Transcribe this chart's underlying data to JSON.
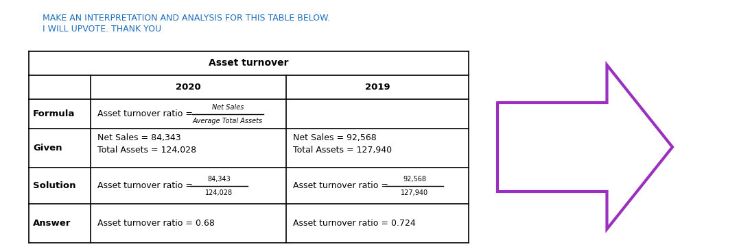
{
  "title_line1": "MAKE AN INTERPRETATION AND ANALYSIS FOR THIS TABLE BELOW.",
  "title_line2": "I WILL UPVOTE. THANK YOU",
  "title_color": "#1F6EBF",
  "table_title": "Asset turnover",
  "col_2020": "2020",
  "col_2019": "2019",
  "row_labels": [
    "Formula",
    "Given",
    "Solution",
    "Answer"
  ],
  "formula_prefix": "Asset turnover ratio = ",
  "formula_numerator": "Net Sales",
  "formula_denominator": "Average Total Assets",
  "given_2020_line1": "Net Sales = 84,343",
  "given_2020_line2": "Total Assets = 124,028",
  "given_2019_line1": "Net Sales = 92,568",
  "given_2019_line2": "Total Assets = 127,940",
  "solution_prefix": "Asset turnover ratio = ",
  "solution_2020_num": "84,343",
  "solution_2020_den": "124,028",
  "solution_2019_num": "92,568",
  "solution_2019_den": "127,940",
  "answer_2020": "Asset turnover ratio = 0.68",
  "answer_2019": "Asset turnover ratio = 0.724",
  "arrow_color": "#9B30C0",
  "bg_color": "#ffffff",
  "fig_width": 10.77,
  "fig_height": 3.67,
  "dpi": 100
}
